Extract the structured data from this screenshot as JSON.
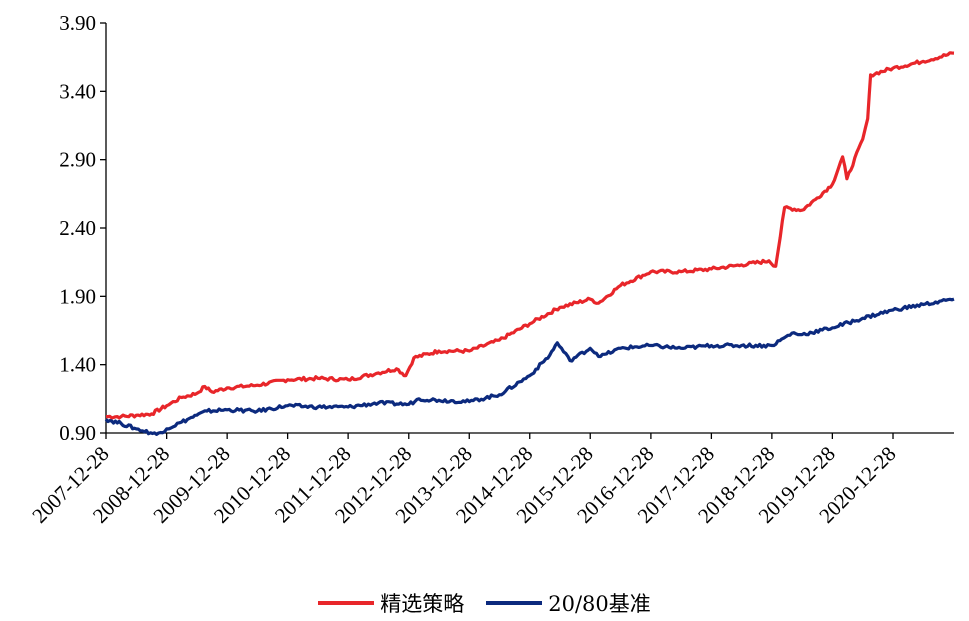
{
  "chart_data": {
    "type": "line",
    "x_ticks": [
      "2007-12-28",
      "2008-12-28",
      "2009-12-28",
      "2010-12-28",
      "2011-12-28",
      "2012-12-28",
      "2013-12-28",
      "2014-12-28",
      "2015-12-28",
      "2016-12-28",
      "2017-12-28",
      "2018-12-28",
      "2019-12-28",
      "2020-12-28"
    ],
    "y_ticks": [
      "0.90",
      "1.40",
      "1.90",
      "2.40",
      "2.90",
      "3.40",
      "3.90"
    ],
    "ylim": [
      0.9,
      3.9
    ],
    "xlim": [
      "2007-12-28",
      "2021-12-31"
    ],
    "grid": false,
    "legend_position": "bottom",
    "series": [
      {
        "name": "精选策略",
        "color": "#e8262a",
        "points": [
          [
            "2007-12-28",
            1.02
          ],
          [
            "2008-03-28",
            1.02
          ],
          [
            "2008-06-28",
            1.03
          ],
          [
            "2008-09-28",
            1.04
          ],
          [
            "2008-12-28",
            1.1
          ],
          [
            "2009-03-28",
            1.16
          ],
          [
            "2009-06-28",
            1.19
          ],
          [
            "2009-08-15",
            1.24
          ],
          [
            "2009-09-28",
            1.2
          ],
          [
            "2009-12-28",
            1.23
          ],
          [
            "2010-06-28",
            1.25
          ],
          [
            "2010-12-28",
            1.29
          ],
          [
            "2011-06-28",
            1.3
          ],
          [
            "2011-12-28",
            1.29
          ],
          [
            "2012-06-28",
            1.34
          ],
          [
            "2012-10-15",
            1.37
          ],
          [
            "2012-12-10",
            1.32
          ],
          [
            "2013-01-28",
            1.45
          ],
          [
            "2013-06-28",
            1.5
          ],
          [
            "2013-12-28",
            1.5
          ],
          [
            "2014-06-28",
            1.58
          ],
          [
            "2014-12-28",
            1.7
          ],
          [
            "2015-06-28",
            1.82
          ],
          [
            "2015-12-28",
            1.88
          ],
          [
            "2016-02-15",
            1.85
          ],
          [
            "2016-06-28",
            1.98
          ],
          [
            "2016-12-28",
            2.08
          ],
          [
            "2017-06-28",
            2.08
          ],
          [
            "2017-12-28",
            2.1
          ],
          [
            "2018-06-28",
            2.13
          ],
          [
            "2018-12-10",
            2.16
          ],
          [
            "2019-01-20",
            2.12
          ],
          [
            "2019-03-15",
            2.55
          ],
          [
            "2019-06-28",
            2.53
          ],
          [
            "2019-09-28",
            2.62
          ],
          [
            "2019-12-28",
            2.72
          ],
          [
            "2020-02-28",
            2.92
          ],
          [
            "2020-03-25",
            2.76
          ],
          [
            "2020-06-28",
            3.05
          ],
          [
            "2020-07-28",
            3.2
          ],
          [
            "2020-08-15",
            3.52
          ],
          [
            "2020-12-28",
            3.57
          ],
          [
            "2021-06-28",
            3.62
          ],
          [
            "2021-12-31",
            3.68
          ]
        ]
      },
      {
        "name": "20/80基准",
        "color": "#0c2a7e",
        "points": [
          [
            "2007-12-28",
            1.0
          ],
          [
            "2008-03-28",
            0.97
          ],
          [
            "2008-06-28",
            0.93
          ],
          [
            "2008-10-28",
            0.89
          ],
          [
            "2008-12-28",
            0.93
          ],
          [
            "2009-03-28",
            0.98
          ],
          [
            "2009-06-28",
            1.03
          ],
          [
            "2009-08-28",
            1.06
          ],
          [
            "2009-12-28",
            1.07
          ],
          [
            "2010-06-28",
            1.06
          ],
          [
            "2010-12-28",
            1.1
          ],
          [
            "2011-06-28",
            1.09
          ],
          [
            "2011-12-28",
            1.09
          ],
          [
            "2012-06-28",
            1.12
          ],
          [
            "2012-12-28",
            1.11
          ],
          [
            "2013-02-28",
            1.15
          ],
          [
            "2013-06-28",
            1.14
          ],
          [
            "2013-12-28",
            1.13
          ],
          [
            "2014-06-28",
            1.18
          ],
          [
            "2014-12-28",
            1.32
          ],
          [
            "2015-04-28",
            1.47
          ],
          [
            "2015-06-12",
            1.56
          ],
          [
            "2015-08-28",
            1.43
          ],
          [
            "2015-12-28",
            1.52
          ],
          [
            "2016-02-28",
            1.46
          ],
          [
            "2016-06-28",
            1.52
          ],
          [
            "2016-12-28",
            1.54
          ],
          [
            "2017-06-28",
            1.52
          ],
          [
            "2017-12-28",
            1.54
          ],
          [
            "2018-06-28",
            1.54
          ],
          [
            "2018-12-28",
            1.54
          ],
          [
            "2019-04-28",
            1.63
          ],
          [
            "2019-06-28",
            1.62
          ],
          [
            "2019-12-28",
            1.67
          ],
          [
            "2020-06-28",
            1.74
          ],
          [
            "2020-12-28",
            1.8
          ],
          [
            "2021-06-28",
            1.84
          ],
          [
            "2021-12-31",
            1.88
          ]
        ]
      }
    ]
  }
}
